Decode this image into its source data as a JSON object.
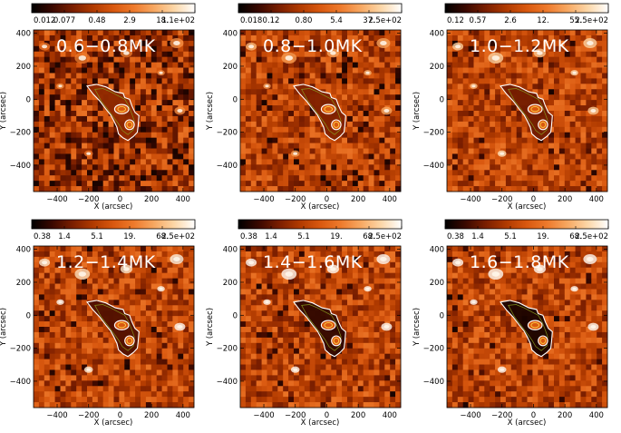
{
  "figure": {
    "panels": [
      {
        "title": "0.6−0.8MK",
        "colorbar_ticks": [
          "0.012",
          "0.077",
          "0.48",
          "2.9",
          "18.",
          "1.1e+02"
        ],
        "xlabel": "X (arcsec)",
        "ylabel": "Y (arcsec)",
        "xticks": [
          "−400",
          "−200",
          "0",
          "200",
          "400"
        ],
        "yticks": [
          "400",
          "200",
          "0",
          "−200",
          "−400"
        ]
      },
      {
        "title": "0.8−1.0MK",
        "colorbar_ticks": [
          "0.018",
          "0.12",
          "0.80",
          "5.4",
          "37.",
          "2.5e+02"
        ],
        "xlabel": "X (arcsec)",
        "ylabel": "Y (arcsec)",
        "xticks": [
          "−400",
          "−200",
          "0",
          "200",
          "400"
        ],
        "yticks": [
          "400",
          "200",
          "0",
          "−200",
          "−400"
        ]
      },
      {
        "title": "1.0−1.2MK",
        "colorbar_ticks": [
          "0.12",
          "0.57",
          "2.6",
          "12.",
          "55.",
          "2.5e+02"
        ],
        "xlabel": "X (arcsec)",
        "ylabel": "Y (arcsec)",
        "xticks": [
          "−400",
          "−200",
          "0",
          "200",
          "400"
        ],
        "yticks": [
          "400",
          "200",
          "0",
          "−200",
          "−400"
        ]
      },
      {
        "title": "1.2−1.4MK",
        "colorbar_ticks": [
          "0.38",
          "1.4",
          "5.1",
          "19.",
          "68.",
          "2.5e+02"
        ],
        "xlabel": "X (arcsec)",
        "ylabel": "Y (arcsec)",
        "xticks": [
          "−400",
          "−200",
          "0",
          "200",
          "400"
        ],
        "yticks": [
          "400",
          "200",
          "0",
          "−200",
          "−400"
        ]
      },
      {
        "title": "1.4−1.6MK",
        "colorbar_ticks": [
          "0.38",
          "1.4",
          "5.1",
          "19.",
          "68.",
          "2.5e+02"
        ],
        "xlabel": "X (arcsec)",
        "ylabel": "Y (arcsec)",
        "xticks": [
          "−400",
          "−200",
          "0",
          "200",
          "400"
        ],
        "yticks": [
          "400",
          "200",
          "0",
          "−200",
          "−400"
        ]
      },
      {
        "title": "1.6−1.8MK",
        "colorbar_ticks": [
          "0.38",
          "1.4",
          "5.1",
          "19.",
          "68.",
          "2.5e+02"
        ],
        "xlabel": "X (arcsec)",
        "ylabel": "Y (arcsec)",
        "xticks": [
          "−400",
          "−200",
          "0",
          "200",
          "400"
        ],
        "yticks": [
          "400",
          "200",
          "0",
          "−200",
          "−400"
        ]
      }
    ],
    "colors": {
      "colormap": [
        "#000000",
        "#3a0800",
        "#7a1e00",
        "#b03a00",
        "#d9580f",
        "#ee7a2c",
        "#f7a862",
        "#fcd7a8",
        "#ffffff"
      ],
      "contour_outer": "#ffffff",
      "contour_inner": "#ffd24a",
      "contour_mid": "#8aa020"
    },
    "darkness": [
      0.55,
      0.22,
      0.1,
      0.12,
      0.1,
      0.08
    ],
    "region_darkness": [
      0.15,
      0.25,
      0.35,
      0.55,
      0.75,
      0.9
    ]
  }
}
